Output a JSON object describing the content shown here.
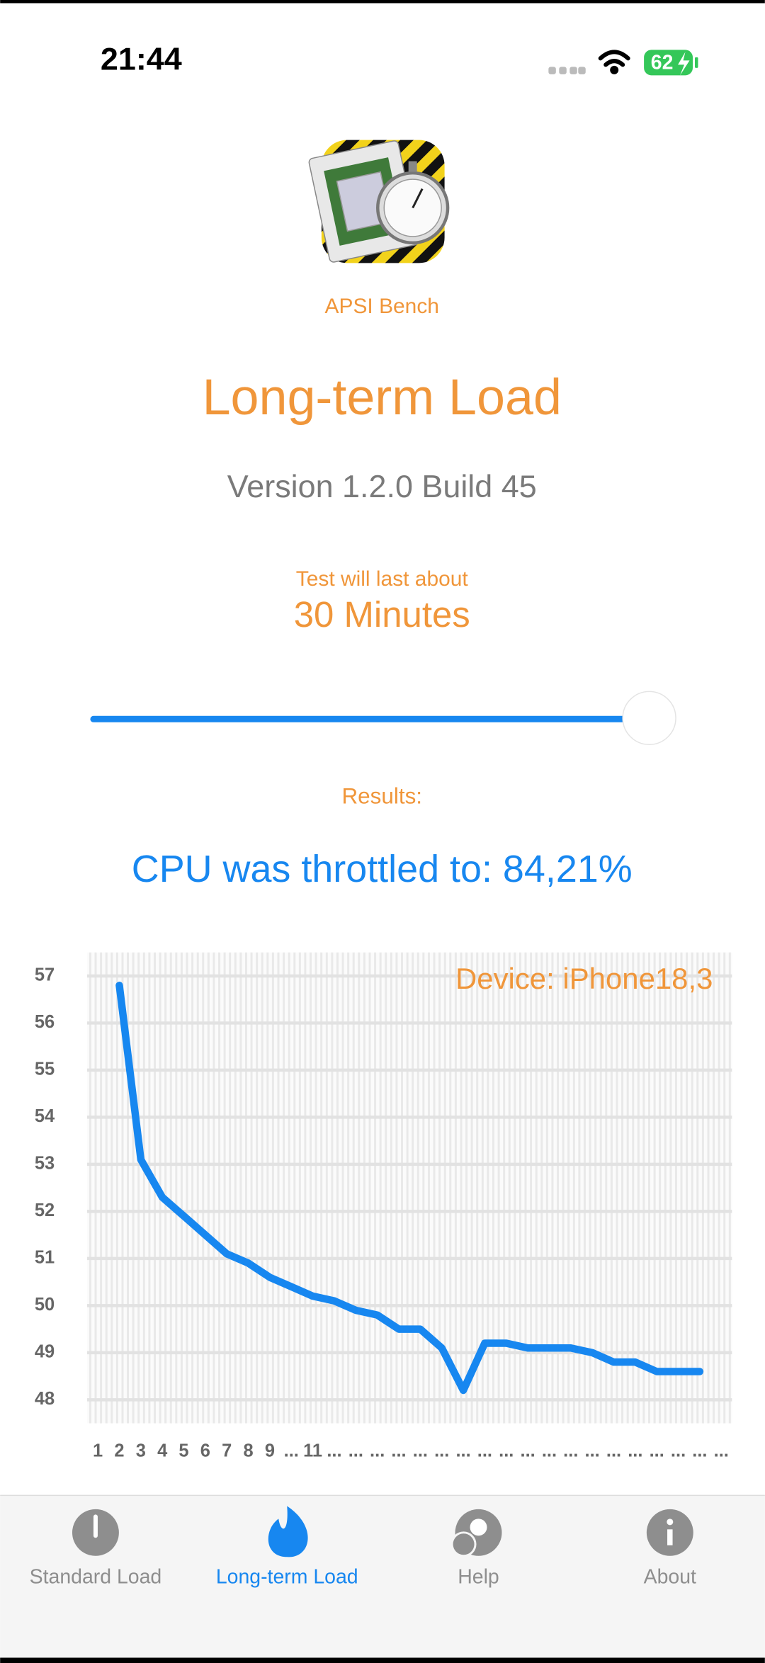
{
  "status_bar": {
    "time": "21:44",
    "battery": "62"
  },
  "header": {
    "app_name": "APSI Bench",
    "title": "Long-term Load",
    "version": "Version 1.2.0 Build 45"
  },
  "duration": {
    "caption": "Test will last about",
    "value": "30 Minutes"
  },
  "results": {
    "label": "Results:",
    "summary": "CPU was throttled to: 84,21%"
  },
  "chart_data": {
    "type": "line",
    "annotation": "Device: iPhone18,3",
    "categories": [
      "1",
      "2",
      "3",
      "4",
      "5",
      "6",
      "7",
      "8",
      "9",
      "...",
      "11",
      "...",
      "...",
      "...",
      "...",
      "...",
      "...",
      "...",
      "...",
      "...",
      "...",
      "...",
      "...",
      "...",
      "...",
      "...",
      "...",
      "...",
      "...",
      "..."
    ],
    "values": [
      null,
      56.8,
      53.1,
      52.3,
      51.9,
      51.5,
      51.1,
      50.9,
      50.6,
      50.4,
      50.2,
      50.1,
      49.9,
      49.8,
      49.5,
      49.5,
      49.1,
      48.2,
      49.2,
      49.2,
      49.1,
      49.1,
      49.1,
      49.0,
      48.8,
      48.8,
      48.6,
      48.6,
      48.6,
      null
    ],
    "color": "#1787f0",
    "ylim": [
      47.5,
      57.5
    ],
    "yticks": [
      48,
      49,
      50,
      51,
      52,
      53,
      54,
      55,
      56,
      57
    ],
    "grid": true
  },
  "tabs": [
    {
      "label": "Standard Load"
    },
    {
      "label": "Long-term Load"
    },
    {
      "label": "Help"
    },
    {
      "label": "About"
    }
  ],
  "active_tab": 1
}
